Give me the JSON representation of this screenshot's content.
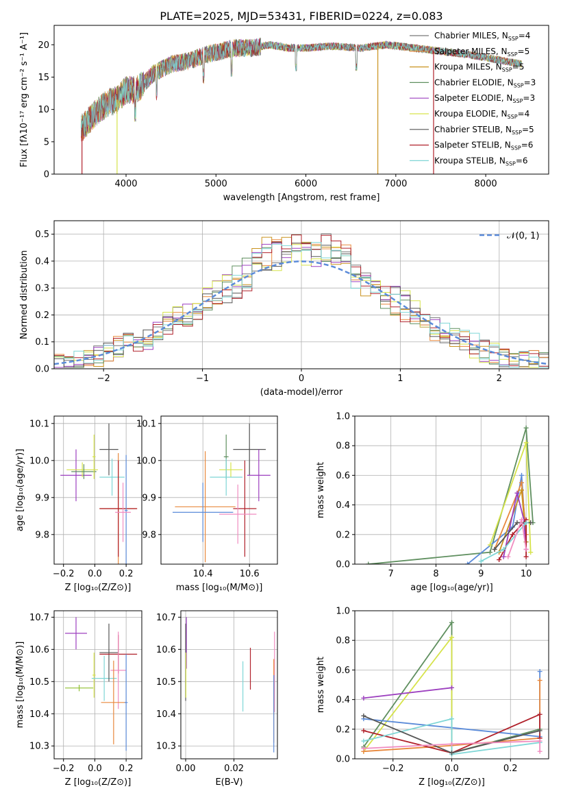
{
  "figure": {
    "title": "PLATE=2025, MJD=53431, FIBERID=0224, z=0.083"
  },
  "chart_data": [
    {
      "id": "spectrum",
      "type": "line",
      "xlabel": "wavelength [Angstrom, rest frame]",
      "ylabel": "Flux [fλ10⁻¹⁷ erg cm⁻² s⁻¹ A⁻¹]",
      "xlim": [
        3200,
        8700
      ],
      "ylim": [
        0,
        23
      ],
      "xticks": [
        4000,
        5000,
        6000,
        7000,
        8000
      ],
      "yticks": [
        0,
        5,
        10,
        15,
        20
      ],
      "grid": false,
      "legend_position": "right",
      "envelope": [
        [
          3500,
          7
        ],
        [
          3600,
          8.5
        ],
        [
          3700,
          10
        ],
        [
          3800,
          11
        ],
        [
          3900,
          11.5
        ],
        [
          4000,
          13
        ],
        [
          4100,
          13
        ],
        [
          4200,
          14
        ],
        [
          4300,
          15.5
        ],
        [
          4500,
          17
        ],
        [
          4700,
          17.5
        ],
        [
          4900,
          18.5
        ],
        [
          5200,
          19.5
        ],
        [
          5400,
          19.5
        ],
        [
          5600,
          20
        ],
        [
          5800,
          19.5
        ],
        [
          6000,
          19.5
        ],
        [
          6300,
          19.8
        ],
        [
          6600,
          19.5
        ],
        [
          6900,
          20
        ],
        [
          7200,
          19.5
        ],
        [
          7500,
          19
        ],
        [
          7800,
          18.5
        ],
        [
          8000,
          18
        ],
        [
          8200,
          17.5
        ],
        [
          8400,
          17
        ]
      ],
      "series": [
        {
          "name": "Chabrier MILES, N_SSP=4",
          "color": "#777777"
        },
        {
          "name": "Salpeter MILES, N_SSP=5",
          "color": "#e8883c"
        },
        {
          "name": "Kroupa MILES, N_SSP=5",
          "color": "#c9921e"
        },
        {
          "name": "Chabrier ELODIE, N_SSP=3",
          "color": "#5f8f5f"
        },
        {
          "name": "Salpeter ELODIE, N_SSP=3",
          "color": "#9c3fbf"
        },
        {
          "name": "Kroupa ELODIE, N_SSP=4",
          "color": "#d6e34a"
        },
        {
          "name": "Chabrier STELIB, N_SSP=5",
          "color": "#555555"
        },
        {
          "name": "Salpeter STELIB, N_SSP=6",
          "color": "#b0202a"
        },
        {
          "name": "Kroupa STELIB, N_SSP=6",
          "color": "#7ed6d6"
        }
      ],
      "legend": [
        {
          "pre": "Chabrier MILES, N",
          "sub": "SSP",
          "post": "=4",
          "color": "#777777"
        },
        {
          "pre": "Salpeter MILES, N",
          "sub": "SSP",
          "post": "=5",
          "color": "#e8883c"
        },
        {
          "pre": "Kroupa MILES, N",
          "sub": "SSP",
          "post": "=5",
          "color": "#c9921e"
        },
        {
          "pre": "Chabrier ELODIE, N",
          "sub": "SSP",
          "post": "=3",
          "color": "#5f8f5f"
        },
        {
          "pre": "Salpeter ELODIE, N",
          "sub": "SSP",
          "post": "=3",
          "color": "#9c3fbf"
        },
        {
          "pre": "Kroupa ELODIE, N",
          "sub": "SSP",
          "post": "=4",
          "color": "#d6e34a"
        },
        {
          "pre": "Chabrier STELIB, N",
          "sub": "SSP",
          "post": "=5",
          "color": "#555555"
        },
        {
          "pre": "Salpeter STELIB, N",
          "sub": "SSP",
          "post": "=6",
          "color": "#b0202a"
        },
        {
          "pre": "Kroupa STELIB, N",
          "sub": "SSP",
          "post": "=6",
          "color": "#7ed6d6"
        }
      ]
    },
    {
      "id": "residuals",
      "type": "line",
      "xlabel": "(data-model)/error",
      "ylabel": "Normed distribution",
      "xlim": [
        -2.5,
        2.5
      ],
      "ylim": [
        0,
        0.55
      ],
      "xticks": [
        -2,
        -1,
        0,
        1,
        2
      ],
      "xtick_labels": [
        "−2",
        "−1",
        "0",
        "1",
        "2"
      ],
      "yticks": [
        0.0,
        0.1,
        0.2,
        0.3,
        0.4,
        0.5
      ],
      "ytick_labels": [
        "0.0",
        "0.1",
        "0.2",
        "0.3",
        "0.4",
        "0.5"
      ],
      "grid": true,
      "legend_label": "𝒩(0, 1)",
      "legend_position": "top-right",
      "bin_width": 0.1,
      "hist_colors": [
        "#777777",
        "#e8883c",
        "#c9921e",
        "#5f8f5f",
        "#9c3fbf",
        "#d6e34a",
        "#555555",
        "#b0202a",
        "#7ed6d6"
      ],
      "gaussian": {
        "mu": 0,
        "sigma": 1,
        "color": "#5b8bd9"
      }
    },
    {
      "id": "age-vs-Z",
      "type": "scatter",
      "xlabel": "Z [log₁₀(Z/Z⊙)]",
      "ylabel": "age  [log₁₀(age/yr)]",
      "xlim": [
        -0.26,
        0.3
      ],
      "ylim": [
        9.72,
        10.12
      ],
      "xticks": [
        -0.2,
        0.0,
        0.2
      ],
      "xtick_labels": [
        "−0.2",
        "0.0",
        "0.2"
      ],
      "yticks": [
        9.8,
        9.9,
        10.0,
        10.1
      ],
      "ytick_labels": [
        "9.8",
        "9.9",
        "10.0",
        "10.1"
      ],
      "grid": true,
      "points": [
        {
          "x": -0.12,
          "y": 9.96,
          "xerr": 0.1,
          "yerr": 0.07,
          "color": "#9c3fbf"
        },
        {
          "x": -0.08,
          "y": 9.975,
          "xerr": 0.1,
          "yerr": 0.02,
          "color": "#d6e34a"
        },
        {
          "x": -0.07,
          "y": 9.97,
          "xerr": 0.08,
          "yerr": 0.02,
          "color": "#5f8f5f"
        },
        {
          "x": -0.005,
          "y": 10.01,
          "xerr": 0.01,
          "yerr": 0.06,
          "color": "#d6e34a"
        },
        {
          "x": 0.09,
          "y": 10.03,
          "xerr": 0.06,
          "yerr": 0.07,
          "color": "#555555"
        },
        {
          "x": 0.11,
          "y": 9.955,
          "xerr": 0.08,
          "yerr": 0.05,
          "color": "#7ed6d6"
        },
        {
          "x": 0.15,
          "y": 9.87,
          "xerr": 0.12,
          "yerr": 0.15,
          "color": "#e8883c"
        },
        {
          "x": 0.15,
          "y": 9.87,
          "xerr": 0.12,
          "yerr": 0.13,
          "color": "#b0202a"
        },
        {
          "x": 0.2,
          "y": 9.865,
          "xerr": 0.01,
          "yerr": 0.15,
          "color": "#5b8bd9"
        },
        {
          "x": 0.18,
          "y": 9.86,
          "xerr": 0.05,
          "yerr": 0.08,
          "color": "#f08cc0"
        }
      ]
    },
    {
      "id": "age-vs-mass",
      "type": "scatter",
      "xlabel": "mass [log₁₀(M/M⊙)]",
      "ylabel": "",
      "xlim": [
        10.22,
        10.72
      ],
      "ylim": [
        9.72,
        10.12
      ],
      "xticks": [
        10.4,
        10.6
      ],
      "xtick_labels": [
        "10.4",
        "10.6"
      ],
      "yticks": [
        9.8,
        9.9,
        10.0,
        10.1
      ],
      "ytick_labels": [
        "9.8",
        "9.9",
        "10.0",
        "10.1"
      ],
      "grid": true,
      "points": [
        {
          "x": 10.5,
          "y": 10.01,
          "xerr": 0.01,
          "yerr": 0.06,
          "color": "#5f8f5f"
        },
        {
          "x": 10.6,
          "y": 10.03,
          "xerr": 0.07,
          "yerr": 0.07,
          "color": "#555555"
        },
        {
          "x": 10.52,
          "y": 9.975,
          "xerr": 0.05,
          "yerr": 0.02,
          "color": "#d6e34a"
        },
        {
          "x": 10.5,
          "y": 9.955,
          "xerr": 0.07,
          "yerr": 0.05,
          "color": "#7ed6d6"
        },
        {
          "x": 10.64,
          "y": 9.96,
          "xerr": 0.05,
          "yerr": 0.07,
          "color": "#9c3fbf"
        },
        {
          "x": 10.41,
          "y": 9.875,
          "xerr": 0.13,
          "yerr": 0.15,
          "color": "#e8883c"
        },
        {
          "x": 10.58,
          "y": 9.87,
          "xerr": 0.05,
          "yerr": 0.13,
          "color": "#b0202a"
        },
        {
          "x": 10.4,
          "y": 9.86,
          "xerr": 0.13,
          "yerr": 0.08,
          "color": "#5b8bd9"
        },
        {
          "x": 10.55,
          "y": 9.855,
          "xerr": 0.08,
          "yerr": 0.08,
          "color": "#f08cc0"
        }
      ]
    },
    {
      "id": "massweight-vs-age",
      "type": "line",
      "xlabel": "age  [log₁₀(age/yr)]",
      "ylabel": "mass weight",
      "xlim": [
        6.2,
        10.5
      ],
      "ylim": [
        0,
        1
      ],
      "xticks": [
        7,
        8,
        9,
        10
      ],
      "xtick_labels": [
        "7",
        "8",
        "9",
        "10"
      ],
      "yticks": [
        0,
        0.2,
        0.4,
        0.6,
        0.8,
        1.0
      ],
      "ytick_labels": [
        "0.0",
        "0.2",
        "0.4",
        "0.6",
        "0.8",
        "1.0"
      ],
      "grid": true,
      "series": [
        {
          "color": "#5f8f5f",
          "points": [
            [
              6.5,
              0.0
            ],
            [
              9.2,
              0.08
            ],
            [
              10.0,
              0.92
            ],
            [
              10.15,
              0.28
            ]
          ]
        },
        {
          "color": "#5b8bd9",
          "points": [
            [
              8.7,
              0.0
            ],
            [
              9.7,
              0.25
            ],
            [
              9.9,
              0.6
            ],
            [
              10.0,
              0.15
            ]
          ]
        },
        {
          "color": "#d6e34a",
          "points": [
            [
              9.2,
              0.13
            ],
            [
              10.0,
              0.82
            ],
            [
              10.1,
              0.08
            ]
          ]
        },
        {
          "color": "#e8883c",
          "points": [
            [
              9.3,
              0.1
            ],
            [
              9.9,
              0.55
            ],
            [
              10.0,
              0.2
            ]
          ]
        },
        {
          "color": "#c9921e",
          "points": [
            [
              9.4,
              0.08
            ],
            [
              9.9,
              0.5
            ],
            [
              10.0,
              0.15
            ]
          ]
        },
        {
          "color": "#9c3fbf",
          "points": [
            [
              9.5,
              0.05
            ],
            [
              9.8,
              0.48
            ],
            [
              9.95,
              0.3
            ],
            [
              10.0,
              0.1
            ]
          ]
        },
        {
          "color": "#b0202a",
          "points": [
            [
              9.4,
              0.03
            ],
            [
              9.7,
              0.2
            ],
            [
              10.0,
              0.3
            ],
            [
              10.0,
              0.05
            ]
          ]
        },
        {
          "color": "#555555",
          "points": [
            [
              9.3,
              0.1
            ],
            [
              9.8,
              0.28
            ],
            [
              10.1,
              0.28
            ]
          ]
        },
        {
          "color": "#7ed6d6",
          "points": [
            [
              9.0,
              0.02
            ],
            [
              9.5,
              0.1
            ],
            [
              10.0,
              0.28
            ]
          ]
        },
        {
          "color": "#f08cc0",
          "points": [
            [
              9.6,
              0.05
            ],
            [
              9.9,
              0.3
            ],
            [
              10.0,
              0.1
            ]
          ]
        }
      ]
    },
    {
      "id": "mass-vs-Z",
      "type": "scatter",
      "xlabel": "Z [log₁₀(Z/Z⊙)]",
      "ylabel": "mass [log₁₀(M/M⊙)]",
      "xlim": [
        -0.26,
        0.3
      ],
      "ylim": [
        10.26,
        10.72
      ],
      "xticks": [
        -0.2,
        0.0,
        0.2
      ],
      "xtick_labels": [
        "−0.2",
        "0.0",
        "0.2"
      ],
      "yticks": [
        10.3,
        10.4,
        10.5,
        10.6,
        10.7
      ],
      "ytick_labels": [
        "10.3",
        "10.4",
        "10.5",
        "10.6",
        "10.7"
      ],
      "grid": true,
      "points": [
        {
          "x": -0.12,
          "y": 10.65,
          "xerr": 0.07,
          "yerr": 0.05,
          "color": "#9c3fbf"
        },
        {
          "x": -0.1,
          "y": 10.48,
          "xerr": 0.09,
          "yerr": 0.01,
          "color": "#8fbf30"
        },
        {
          "x": -0.005,
          "y": 10.52,
          "xerr": 0.01,
          "yerr": 0.07,
          "color": "#d6e34a"
        },
        {
          "x": 0.06,
          "y": 10.51,
          "xerr": 0.08,
          "yerr": 0.07,
          "color": "#7ed6d6"
        },
        {
          "x": 0.09,
          "y": 10.59,
          "xerr": 0.06,
          "yerr": 0.09,
          "color": "#555555"
        },
        {
          "x": 0.15,
          "y": 10.585,
          "xerr": 0.12,
          "yerr": 0.06,
          "color": "#b0202a"
        },
        {
          "x": 0.15,
          "y": 10.535,
          "xerr": 0.05,
          "yerr": 0.12,
          "color": "#f08cc0"
        },
        {
          "x": 0.12,
          "y": 10.435,
          "xerr": 0.08,
          "yerr": 0.13,
          "color": "#e8883c"
        },
        {
          "x": 0.2,
          "y": 10.435,
          "xerr": 0.01,
          "yerr": 0.15,
          "color": "#5b8bd9"
        }
      ]
    },
    {
      "id": "mass-vs-EBV",
      "type": "scatter",
      "xlabel": "E(B-V)",
      "ylabel": "",
      "xlim": [
        -0.002,
        0.038
      ],
      "ylim": [
        10.26,
        10.72
      ],
      "xticks": [
        0.0,
        0.02
      ],
      "xtick_labels": [
        "0.00",
        "0.02"
      ],
      "yticks": [
        10.3,
        10.4,
        10.5,
        10.6,
        10.7
      ],
      "ytick_labels": [
        "10.3",
        "10.4",
        "10.5",
        "10.6",
        "10.7"
      ],
      "grid": true,
      "points": [
        {
          "x": 0.0003,
          "y": 10.62,
          "xerr": 0,
          "yerr": 0.08,
          "color": "#9c3fbf"
        },
        {
          "x": 0.0,
          "y": 10.56,
          "xerr": 0,
          "yerr": 0.12,
          "color": "#555555"
        },
        {
          "x": 0.0001,
          "y": 10.52,
          "xerr": 0,
          "yerr": 0.07,
          "color": "#d6e34a"
        },
        {
          "x": 0.0237,
          "y": 10.485,
          "xerr": 0,
          "yerr": 0.078,
          "color": "#7ed6d6"
        },
        {
          "x": 0.0268,
          "y": 10.54,
          "xerr": 0,
          "yerr": 0.065,
          "color": "#b0202a"
        },
        {
          "x": 0.0368,
          "y": 10.53,
          "xerr": 0,
          "yerr": 0.125,
          "color": "#f08cc0"
        },
        {
          "x": 0.0365,
          "y": 10.44,
          "xerr": 0,
          "yerr": 0.13,
          "color": "#e8883c"
        },
        {
          "x": 0.0365,
          "y": 10.4,
          "xerr": 0,
          "yerr": 0.12,
          "color": "#5b8bd9"
        }
      ]
    },
    {
      "id": "massweight-vs-Z",
      "type": "line",
      "xlabel": "Z [log₁₀(Z/Z⊙)]",
      "ylabel": "mass weight",
      "xlim": [
        -0.33,
        0.33
      ],
      "ylim": [
        0,
        1
      ],
      "xticks": [
        -0.2,
        0.0,
        0.2
      ],
      "xtick_labels": [
        "−0.2",
        "0.0",
        "0.2"
      ],
      "yticks": [
        0,
        0.2,
        0.4,
        0.6,
        0.8,
        1.0
      ],
      "ytick_labels": [
        "0.0",
        "0.2",
        "0.4",
        "0.6",
        "0.8",
        "1.0"
      ],
      "grid": true,
      "series": [
        {
          "color": "#5f8f5f",
          "points": [
            [
              -0.3,
              0.08
            ],
            [
              0.0,
              0.92
            ],
            [
              0.0,
              0.04
            ],
            [
              0.3,
              0.2
            ]
          ]
        },
        {
          "color": "#d6e34a",
          "points": [
            [
              -0.3,
              0.05
            ],
            [
              0.0,
              0.82
            ],
            [
              0.0,
              0.04
            ]
          ]
        },
        {
          "color": "#9c3fbf",
          "points": [
            [
              -0.3,
              0.41
            ],
            [
              0.0,
              0.48
            ]
          ]
        },
        {
          "color": "#5b8bd9",
          "points": [
            [
              -0.3,
              0.27
            ],
            [
              0.3,
              0.15
            ],
            [
              0.3,
              0.59
            ]
          ]
        },
        {
          "color": "#e8883c",
          "points": [
            [
              -0.3,
              0.05
            ],
            [
              0.0,
              0.09
            ],
            [
              0.3,
              0.14
            ],
            [
              0.3,
              0.53
            ]
          ]
        },
        {
          "color": "#b0202a",
          "points": [
            [
              -0.3,
              0.19
            ],
            [
              0.0,
              0.04
            ],
            [
              0.3,
              0.3
            ],
            [
              0.3,
              0.14
            ]
          ]
        },
        {
          "color": "#7ed6d6",
          "points": [
            [
              -0.3,
              0.12
            ],
            [
              0.0,
              0.27
            ],
            [
              0.0,
              0.03
            ],
            [
              0.3,
              0.11
            ]
          ]
        },
        {
          "color": "#555555",
          "points": [
            [
              -0.3,
              0.29
            ],
            [
              0.0,
              0.04
            ],
            [
              0.3,
              0.19
            ]
          ]
        },
        {
          "color": "#f08cc0",
          "points": [
            [
              -0.3,
              0.07
            ],
            [
              0.0,
              0.1
            ],
            [
              0.3,
              0.12
            ],
            [
              0.3,
              0.05
            ]
          ]
        }
      ]
    }
  ]
}
